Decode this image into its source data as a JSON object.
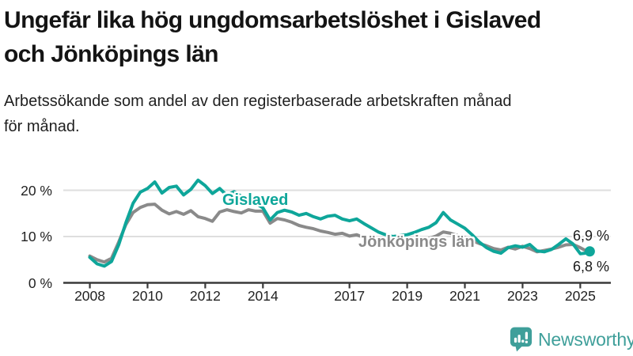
{
  "header": {
    "title": "Ungefär lika hög ungdomsarbetslöshet i Gislaved\noch Jönköpings län",
    "subtitle": "Arbetssökande som andel av den registerbaserade arbetskraften månad\nför månad."
  },
  "chart_data": {
    "type": "line",
    "title": "Ungefär lika hög ungdomsarbetslöshet i Gislaved och Jönköpings län",
    "subtitle": "Arbetssökande som andel av den registerbaserade arbetskraften månad för månad.",
    "unit": "%",
    "grid": "horizontal",
    "legend_position": "inline-labels",
    "xlim": [
      2007.08,
      2026.06
    ],
    "ylim": [
      0,
      24.4
    ],
    "x": [
      2008.0,
      2008.25,
      2008.5,
      2008.75,
      2009.0,
      2009.25,
      2009.5,
      2009.75,
      2010.0,
      2010.25,
      2010.5,
      2010.75,
      2011.0,
      2011.25,
      2011.5,
      2011.75,
      2012.0,
      2012.25,
      2012.5,
      2012.75,
      2013.0,
      2013.25,
      2013.5,
      2013.75,
      2014.0,
      2014.25,
      2014.5,
      2014.75,
      2015.0,
      2015.25,
      2015.5,
      2015.75,
      2016.0,
      2016.25,
      2016.5,
      2016.75,
      2017.0,
      2017.25,
      2017.5,
      2017.75,
      2018.0,
      2018.25,
      2018.5,
      2018.75,
      2019.0,
      2019.25,
      2019.5,
      2019.75,
      2020.0,
      2020.25,
      2020.5,
      2020.75,
      2021.0,
      2021.25,
      2021.5,
      2021.75,
      2022.0,
      2022.25,
      2022.5,
      2022.75,
      2023.0,
      2023.25,
      2023.5,
      2023.75,
      2024.0,
      2024.25,
      2024.5,
      2024.75,
      2025.0,
      2025.15,
      2025.33
    ],
    "series": [
      {
        "name": "Jönköpings län",
        "color": "#8a8a8a",
        "end_label": "6,9 %",
        "end_dot": false,
        "values": [
          5.8,
          5.0,
          4.5,
          5.3,
          8.8,
          12.6,
          15.2,
          16.3,
          16.9,
          17.0,
          15.7,
          14.9,
          15.4,
          14.8,
          15.6,
          14.3,
          13.9,
          13.3,
          15.3,
          15.8,
          15.4,
          15.1,
          15.8,
          15.5,
          15.5,
          12.9,
          13.9,
          13.6,
          13.1,
          12.4,
          12.0,
          11.7,
          11.2,
          10.9,
          10.5,
          10.7,
          10.1,
          10.4,
          9.8,
          9.5,
          9.2,
          9.0,
          8.8,
          8.9,
          8.8,
          9.0,
          9.2,
          9.6,
          10.1,
          11.0,
          10.7,
          10.2,
          9.8,
          9.1,
          8.5,
          8.0,
          7.4,
          7.1,
          7.7,
          7.3,
          7.9,
          7.4,
          6.7,
          7.0,
          7.3,
          7.7,
          8.2,
          8.3,
          7.6,
          7.1,
          6.9
        ]
      },
      {
        "name": "Gislaved",
        "color": "#0ea69a",
        "end_label": "6,8 %",
        "end_dot": true,
        "values": [
          5.5,
          4.1,
          3.6,
          4.6,
          8.2,
          13.0,
          17.2,
          19.6,
          20.4,
          21.8,
          19.4,
          20.6,
          20.9,
          19.0,
          20.2,
          22.2,
          21.0,
          19.3,
          20.4,
          18.9,
          19.7,
          18.7,
          18.0,
          17.2,
          16.2,
          13.6,
          15.2,
          15.7,
          15.3,
          14.6,
          15.0,
          14.3,
          13.8,
          14.4,
          14.6,
          13.8,
          13.4,
          13.8,
          12.8,
          11.9,
          11.0,
          10.4,
          10.0,
          10.2,
          10.4,
          10.9,
          11.5,
          12.0,
          13.0,
          15.2,
          13.6,
          12.7,
          11.8,
          10.4,
          8.8,
          7.6,
          6.8,
          6.4,
          7.6,
          8.0,
          7.7,
          8.3,
          6.9,
          6.7,
          7.2,
          8.3,
          9.5,
          8.4,
          6.3,
          6.4,
          6.8
        ]
      }
    ],
    "yticks": [
      {
        "value": 0,
        "label": "0 %"
      },
      {
        "value": 10,
        "label": "10 %"
      },
      {
        "value": 20,
        "label": "20 %"
      }
    ],
    "xticks": [
      {
        "value": 2008,
        "label": "2008"
      },
      {
        "value": 2010,
        "label": "2010"
      },
      {
        "value": 2012,
        "label": "2012"
      },
      {
        "value": 2014,
        "label": "2014"
      },
      {
        "value": 2017,
        "label": "2017"
      },
      {
        "value": 2019,
        "label": "2019"
      },
      {
        "value": 2021,
        "label": "2021"
      },
      {
        "value": 2023,
        "label": "2023"
      },
      {
        "value": 2025,
        "label": "2025"
      }
    ],
    "colors": {
      "grid": "#dedede",
      "axis": "#3a3a3a",
      "tick_text": "#222222"
    }
  },
  "footer": {
    "brand": "Newsworthy",
    "brand_color": "#3f9f9a",
    "logo_icon": "speech-bubble-bar-chart-icon"
  }
}
